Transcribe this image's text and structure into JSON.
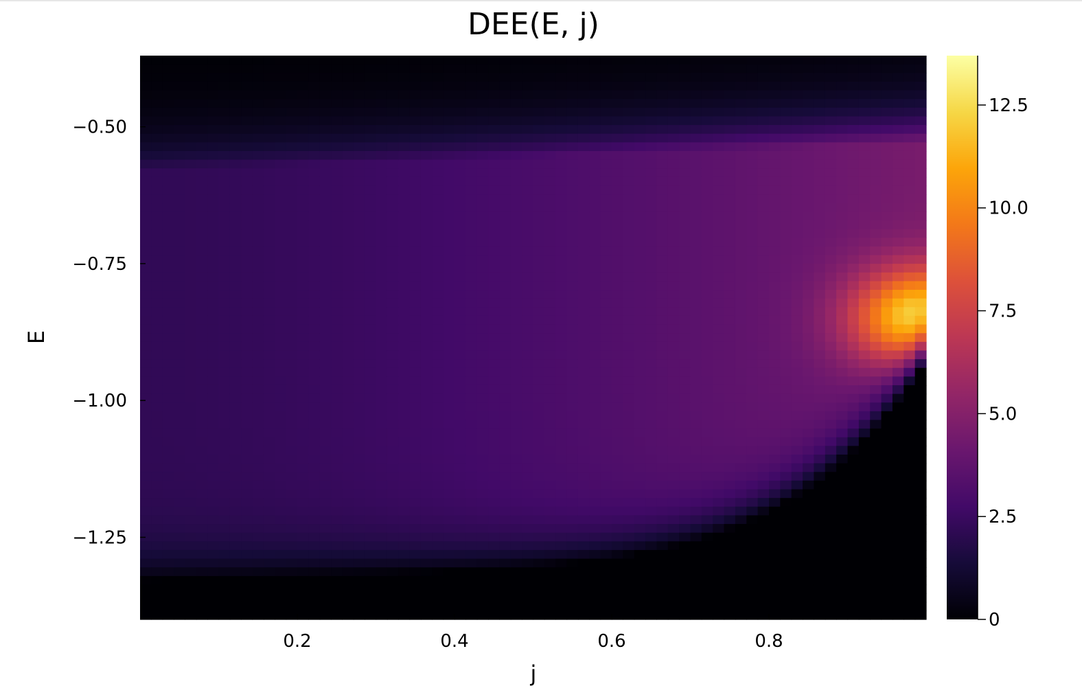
{
  "chart_data": {
    "type": "heatmap",
    "title": "DEE(E, j)",
    "xlabel": "j",
    "ylabel": "E",
    "xlim": [
      0.0,
      1.0
    ],
    "ylim": [
      -1.4,
      -0.37
    ],
    "xticks": [
      0.2,
      0.4,
      0.6,
      0.8
    ],
    "xtick_labels": [
      "0.2",
      "0.4",
      "0.6",
      "0.8"
    ],
    "yticks": [
      -0.5,
      -0.75,
      -1.0,
      -1.25
    ],
    "ytick_labels": [
      "−0.50",
      "−0.75",
      "−1.00",
      "−1.25"
    ],
    "colorbar": {
      "colormap": "inferno",
      "range": [
        0,
        13.7
      ],
      "ticks": [
        0,
        2.5,
        5.0,
        7.5,
        10.0,
        12.5
      ],
      "tick_labels": [
        "0",
        "2.5",
        "5.0",
        "7.5",
        "10.0",
        "12.5"
      ]
    },
    "grid": false,
    "legend": "none",
    "n_j_bins": 70,
    "n_E_bins": 65,
    "description_of_field": {
      "peak_value": 13.5,
      "peak_at": {
        "j": 0.99,
        "E": -0.85
      },
      "zero_region": "below E_min(j), where E_min(j) ≈ -1.30 - 0.06*j^2 ... rising towards -0.97 at j=1",
      "high_energy_decay_above_E": -0.55
    }
  }
}
